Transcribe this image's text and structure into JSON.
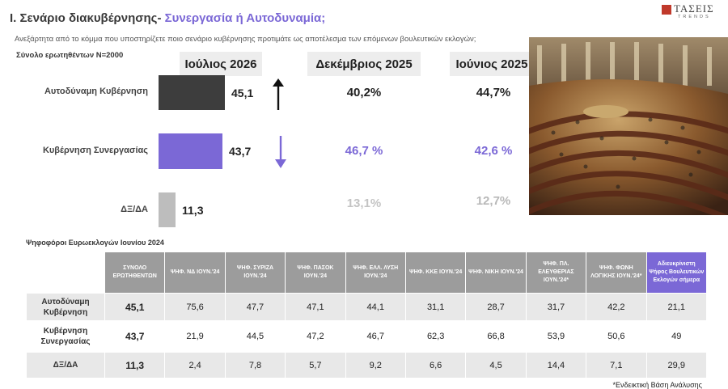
{
  "header": {
    "title_prefix": "Ι. Σενάριο διακυβέρνησης-",
    "title_accent": "Συνεργασία ή Αυτοδυναμία;",
    "subtitle": "Ανεξάρτητα από το κόμμα που υποστηρίζετε ποιο σενάριο κυβέρνησης προτιμάτε ως αποτέλεσμα των επόμενων βουλευτικών εκλογών;",
    "sample": "Σύνολο ερωτηθέντων Ν=2000"
  },
  "logo": {
    "name": "ΤΑΣΕΙΣ",
    "sub": "TRENDS"
  },
  "colors": {
    "accent": "#7b68d6",
    "dark_bar": "#3d3d3d",
    "gray_bar": "#bdbdbd",
    "header_bg": "#9c9c9c"
  },
  "chart_data": [
    {
      "type": "bar",
      "orientation": "horizontal",
      "title": "Ιούλιος 2026",
      "categories": [
        "Αυτοδύναμη Κυβέρνηση",
        "Κυβέρνηση Συνεργασίας",
        "ΔΞ/ΔΑ"
      ],
      "values": [
        45.1,
        43.7,
        11.3
      ],
      "value_labels": [
        "45,1",
        "43,7",
        "11,3"
      ],
      "trend_arrows": [
        "up",
        "down",
        ""
      ],
      "comparison_columns": [
        {
          "title": "Δεκέμβριος 2025",
          "values": [
            40.2,
            46.7,
            13.1
          ],
          "labels": [
            "40,2%",
            "46,7 %",
            "13,1%"
          ]
        },
        {
          "title": "Ιούνιος 2025",
          "values": [
            44.7,
            42.6,
            12.7
          ],
          "labels": [
            "44,7%",
            "42,6 %",
            "12,7%"
          ]
        }
      ]
    },
    {
      "type": "table",
      "title": "Ψηφοφόροι Ευρωεκλογών Ιουνίου 2024",
      "columns": [
        "ΣΥΝΟΛΟ ΕΡΩΤΗΘΕΝΤΩΝ",
        "ΨΗΦ. ΝΔ ΙΟΥΝ.'24",
        "ΨΗΦ. ΣΥΡΙΖΑ ΙΟΥΝ.'24",
        "ΨΗΦ. ΠΑΣΟΚ ΙΟΥΝ.'24",
        "ΨΗΦ. ΕΛΛ. ΛΥΣΗ ΙΟΥΝ.'24",
        "ΨΗΦ. ΚΚΕ ΙΟΥΝ.'24",
        "ΨΗΦ. ΝΙΚΗ ΙΟΥΝ.'24",
        "ΨΗΦ. ΠΛ. ΕΛΕΥΘΕΡΙΑΣ ΙΟΥΝ.'24*",
        "ΨΗΦ. ΦΩΝΗ ΛΟΓΙΚΗΣ ΙΟΥΝ.'24*",
        "Αδιευκρίνιστη Ψήφος Βουλευτικών Εκλογών σήμερα"
      ],
      "rows": [
        {
          "label": "Αυτοδύναμη Κυβέρνηση",
          "values": [
            "45,1",
            "75,6",
            "47,7",
            "47,1",
            "44,1",
            "31,1",
            "28,7",
            "31,7",
            "42,2",
            "21,1"
          ]
        },
        {
          "label": "Κυβέρνηση Συνεργασίας",
          "values": [
            "43,7",
            "21,9",
            "44,5",
            "47,2",
            "46,7",
            "62,3",
            "66,8",
            "53,9",
            "50,6",
            "49"
          ]
        },
        {
          "label": "ΔΞ/ΔΑ",
          "values": [
            "11,3",
            "2,4",
            "7,8",
            "5,7",
            "9,2",
            "6,6",
            "4,5",
            "14,4",
            "7,1",
            "29,9"
          ]
        }
      ]
    }
  ],
  "footnote": "*Ενδεικτική Βάση Ανάλυσης"
}
